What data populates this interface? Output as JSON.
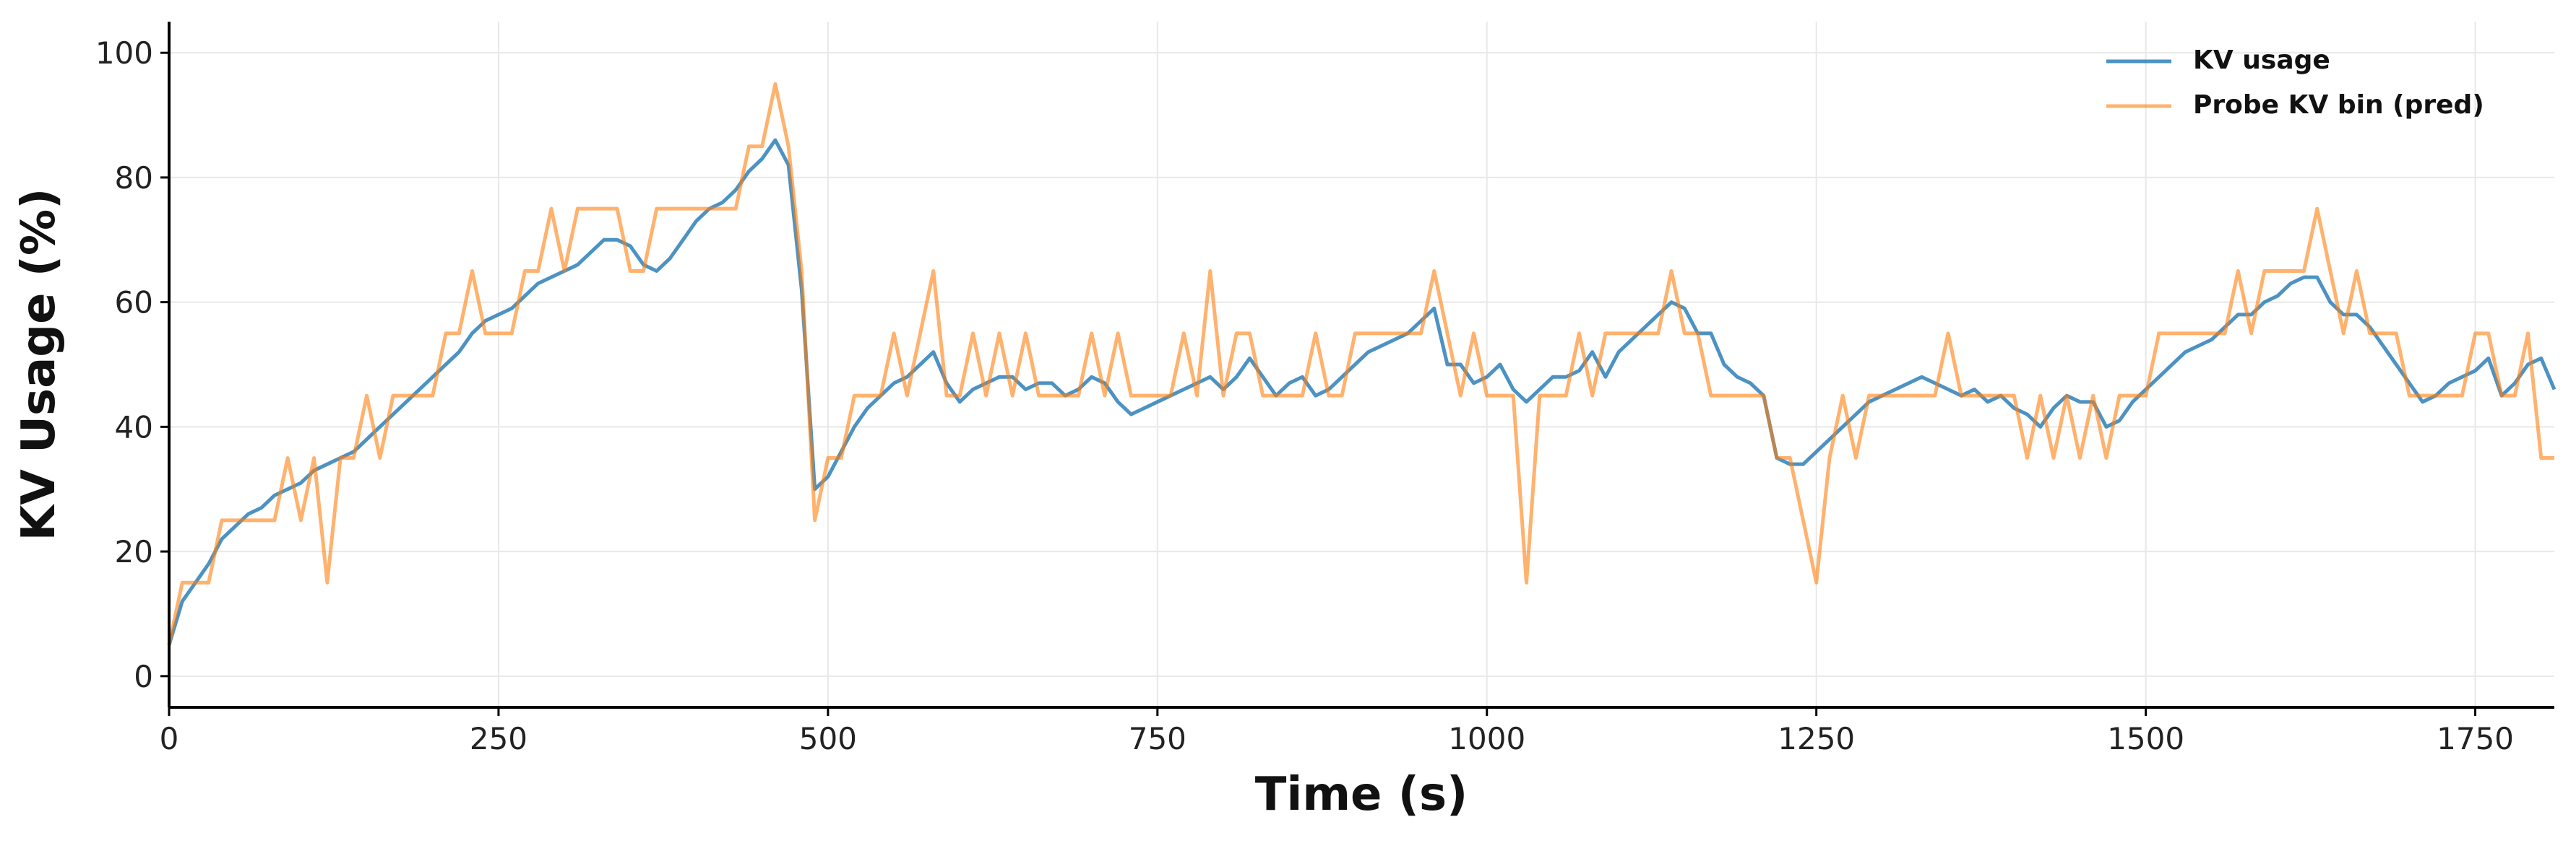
{
  "chart_data": {
    "type": "line",
    "xlabel": "Time (s)",
    "ylabel": "KV Usage (%)",
    "x": [
      0,
      10,
      20,
      30,
      40,
      50,
      60,
      70,
      80,
      90,
      100,
      110,
      120,
      130,
      140,
      150,
      160,
      170,
      180,
      190,
      200,
      210,
      220,
      230,
      240,
      250,
      260,
      270,
      280,
      290,
      300,
      310,
      320,
      330,
      340,
      350,
      360,
      370,
      380,
      390,
      400,
      410,
      420,
      430,
      440,
      450,
      460,
      470,
      480,
      490,
      500,
      510,
      520,
      530,
      540,
      550,
      560,
      570,
      580,
      590,
      600,
      610,
      620,
      630,
      640,
      650,
      660,
      670,
      680,
      690,
      700,
      710,
      720,
      730,
      740,
      750,
      760,
      770,
      780,
      790,
      800,
      810,
      820,
      830,
      840,
      850,
      860,
      870,
      880,
      890,
      900,
      910,
      920,
      930,
      940,
      950,
      960,
      970,
      980,
      990,
      1000,
      1010,
      1020,
      1030,
      1040,
      1050,
      1060,
      1070,
      1080,
      1090,
      1100,
      1110,
      1120,
      1130,
      1140,
      1150,
      1160,
      1170,
      1180,
      1190,
      1200,
      1210,
      1220,
      1230,
      1240,
      1250,
      1260,
      1270,
      1280,
      1290,
      1300,
      1310,
      1320,
      1330,
      1340,
      1350,
      1360,
      1370,
      1380,
      1390,
      1400,
      1410,
      1420,
      1430,
      1440,
      1450,
      1460,
      1470,
      1480,
      1490,
      1500,
      1510,
      1520,
      1530,
      1540,
      1550,
      1560,
      1570,
      1580,
      1590,
      1600,
      1610,
      1620,
      1630,
      1640,
      1650,
      1660,
      1670,
      1680,
      1690,
      1700,
      1710,
      1720,
      1730,
      1740,
      1750,
      1760,
      1770,
      1780,
      1790,
      1800,
      1810
    ],
    "series": [
      {
        "name": "KV usage",
        "color": "#1f77b4",
        "values": [
          5,
          12,
          15,
          18,
          22,
          24,
          26,
          27,
          29,
          30,
          31,
          33,
          34,
          35,
          36,
          38,
          40,
          42,
          44,
          46,
          48,
          50,
          52,
          55,
          57,
          58,
          59,
          61,
          63,
          64,
          65,
          66,
          68,
          70,
          70,
          69,
          66,
          65,
          67,
          70,
          73,
          75,
          76,
          78,
          81,
          83,
          86,
          82,
          62,
          30,
          32,
          36,
          40,
          43,
          45,
          47,
          48,
          50,
          52,
          47,
          44,
          46,
          47,
          48,
          48,
          46,
          47,
          47,
          45,
          46,
          48,
          47,
          44,
          42,
          43,
          44,
          45,
          46,
          47,
          48,
          46,
          48,
          51,
          48,
          45,
          47,
          48,
          45,
          46,
          48,
          50,
          52,
          53,
          54,
          55,
          57,
          59,
          50,
          50,
          47,
          48,
          50,
          46,
          44,
          46,
          48,
          48,
          49,
          52,
          48,
          52,
          54,
          56,
          58,
          60,
          59,
          55,
          55,
          50,
          48,
          47,
          45,
          35,
          34,
          34,
          36,
          38,
          40,
          42,
          44,
          45,
          46,
          47,
          48,
          47,
          46,
          45,
          46,
          44,
          45,
          43,
          42,
          40,
          43,
          45,
          44,
          44,
          40,
          41,
          44,
          46,
          48,
          50,
          52,
          53,
          54,
          56,
          58,
          58,
          60,
          61,
          63,
          64,
          64,
          60,
          58,
          58,
          56,
          53,
          50,
          47,
          44,
          45,
          47,
          48,
          49,
          51,
          45,
          47,
          50,
          51,
          46
        ]
      },
      {
        "name": "Probe KV bin (pred)",
        "color": "#ff7f0e",
        "values": [
          5,
          15,
          15,
          15,
          25,
          25,
          25,
          25,
          25,
          35,
          25,
          35,
          15,
          35,
          35,
          45,
          35,
          45,
          45,
          45,
          45,
          55,
          55,
          65,
          55,
          55,
          55,
          65,
          65,
          75,
          65,
          75,
          75,
          75,
          75,
          65,
          65,
          75,
          75,
          75,
          75,
          75,
          75,
          75,
          85,
          85,
          95,
          85,
          65,
          25,
          35,
          35,
          45,
          45,
          45,
          55,
          45,
          55,
          65,
          45,
          45,
          55,
          45,
          55,
          45,
          55,
          45,
          45,
          45,
          45,
          55,
          45,
          55,
          45,
          45,
          45,
          45,
          55,
          45,
          65,
          45,
          55,
          55,
          45,
          45,
          45,
          45,
          55,
          45,
          45,
          55,
          55,
          55,
          55,
          55,
          55,
          65,
          55,
          45,
          55,
          45,
          45,
          45,
          15,
          45,
          45,
          45,
          55,
          45,
          55,
          55,
          55,
          55,
          55,
          65,
          55,
          55,
          45,
          45,
          45,
          45,
          45,
          35,
          35,
          25,
          15,
          35,
          45,
          35,
          45,
          45,
          45,
          45,
          45,
          45,
          55,
          45,
          45,
          45,
          45,
          45,
          35,
          45,
          35,
          45,
          35,
          45,
          35,
          45,
          45,
          45,
          55,
          55,
          55,
          55,
          55,
          55,
          65,
          55,
          65,
          65,
          65,
          65,
          75,
          65,
          55,
          65,
          55,
          55,
          55,
          45,
          45,
          45,
          45,
          45,
          55,
          55,
          45,
          45,
          55,
          35,
          35
        ]
      }
    ],
    "xlim": [
      0,
      1810
    ],
    "ylim": [
      -5,
      105
    ],
    "xticks": [
      0,
      250,
      500,
      750,
      1000,
      1250,
      1500,
      1750
    ],
    "yticks": [
      0,
      20,
      40,
      60,
      80,
      100
    ],
    "grid": true,
    "legend": "upper right"
  }
}
